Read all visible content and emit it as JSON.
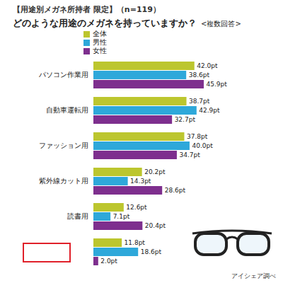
{
  "chart_data": {
    "type": "bar",
    "orientation": "horizontal",
    "subtitle": "【用途別メガネ所持者 限定】（n=119）",
    "title": "どのような用途のメガネを持っていますか？",
    "annotations": [
      "<複数回答>"
    ],
    "caption": "アイシェア調べ",
    "categories": [
      "パソコン作業用",
      "自動車運転用",
      "ファッション用",
      "紫外線カット用",
      "読書用",
      null
    ],
    "series": [
      {
        "name": "全体",
        "color": "#bcc62e",
        "values": [
          42.0,
          38.7,
          37.8,
          20.2,
          12.6,
          11.8
        ],
        "value_labels": [
          "42.0pt",
          "38.7pt",
          "37.8pt",
          "20.2pt",
          "12.6pt",
          "11.8pt"
        ]
      },
      {
        "name": "男性",
        "color": "#2ea8da",
        "values": [
          38.6,
          42.9,
          40.0,
          14.3,
          7.1,
          18.6
        ],
        "value_labels": [
          "38.6pt",
          "42.9pt",
          "40.0pt",
          "14.3pt",
          "7.1pt",
          "18.6pt"
        ]
      },
      {
        "name": "女性",
        "color": "#7e2f8e",
        "values": [
          45.9,
          32.7,
          34.7,
          28.6,
          20.4,
          2.0
        ],
        "value_labels": [
          "45.9pt",
          "32.7pt",
          "34.7pt",
          "28.6pt",
          "20.4pt",
          "2.0pt"
        ]
      }
    ],
    "legend": "top-left",
    "grid": false,
    "data_labels": true,
    "tick_labels": "y"
  }
}
